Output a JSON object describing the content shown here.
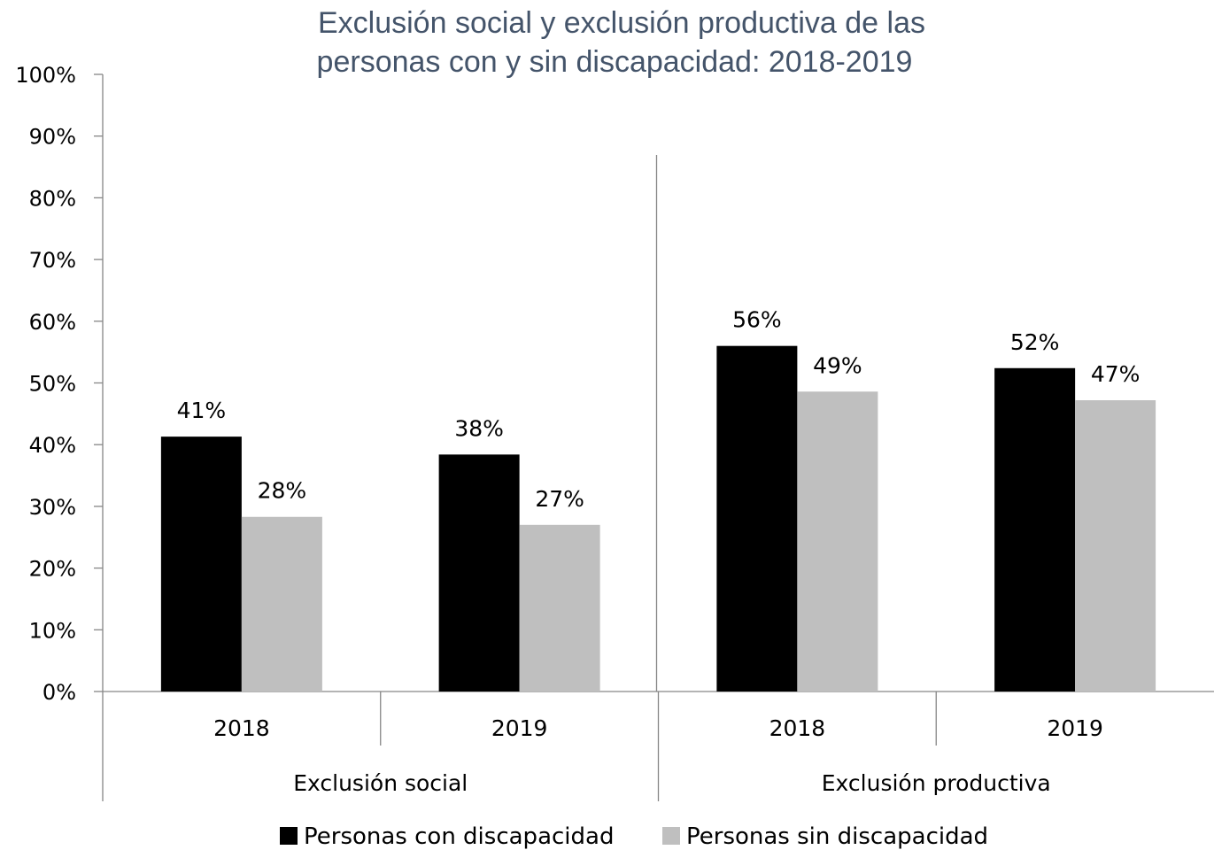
{
  "chart_data": {
    "type": "bar",
    "title_lines": [
      "Exclusión social y exclusión productiva de las",
      "personas con y sin discapacidad: 2018-2019"
    ],
    "groups": [
      {
        "label": "Exclusión social",
        "categories": [
          "2018",
          "2019"
        ]
      },
      {
        "label": "Exclusión productiva",
        "categories": [
          "2018",
          "2019"
        ]
      }
    ],
    "series": [
      {
        "name": "Personas con discapacidad",
        "color": "#000000",
        "values": [
          41.3,
          38.4,
          56.0,
          52.4
        ],
        "labels": [
          "41%",
          "38%",
          "56%",
          "52%"
        ]
      },
      {
        "name": "Personas sin discapacidad",
        "color": "#bfbfbf",
        "values": [
          28.3,
          27.0,
          48.6,
          47.2
        ],
        "labels": [
          "28%",
          "27%",
          "49%",
          "47%"
        ]
      }
    ],
    "ylim": [
      0,
      100
    ],
    "y_ticks": [
      "0%",
      "10%",
      "20%",
      "30%",
      "40%",
      "50%",
      "60%",
      "70%",
      "80%",
      "90%",
      "100%"
    ],
    "grid": false,
    "legend_position": "bottom",
    "data_labels": true
  }
}
